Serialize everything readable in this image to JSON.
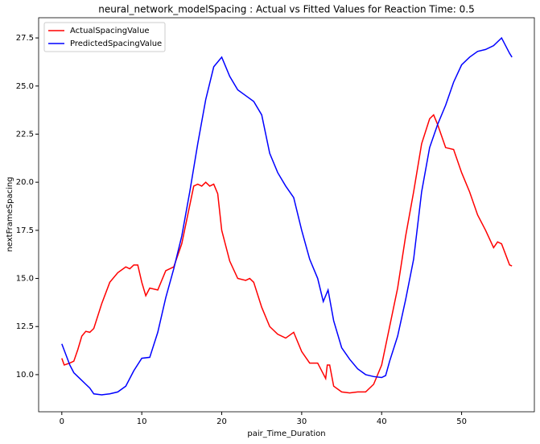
{
  "chart_data": {
    "type": "line",
    "title": "neural_network_modelSpacing : Actual vs Fitted Values for Reaction Time: 0.5",
    "x_label": "pair_Time_Duration",
    "y_label": "nextFrameSpacing",
    "xlim": [
      -2.9,
      59.1
    ],
    "ylim": [
      8.07,
      28.55
    ],
    "xticks": [
      0,
      10,
      20,
      30,
      40,
      50
    ],
    "yticks": [
      {
        "value": 10,
        "label": "10.0"
      },
      12.5,
      {
        "value": 15,
        "label": "15.0"
      },
      17.5,
      {
        "value": 20,
        "label": "20.0"
      },
      22.5,
      {
        "value": 25,
        "label": "25.0"
      },
      27.5
    ],
    "legend": "upper left",
    "series": [
      {
        "name": "ActualSpacingValue",
        "color": "#ff0000",
        "x": [
          0,
          0.3,
          1,
          1.5,
          2,
          2.5,
          3,
          3.5,
          4,
          5,
          6,
          7,
          8,
          8.5,
          9,
          9.5,
          10,
          10.5,
          11,
          12,
          13,
          14,
          15,
          16,
          16.5,
          17,
          17.5,
          18,
          18.5,
          19,
          19.5,
          20,
          21,
          22,
          23,
          23.5,
          24,
          25,
          26,
          27,
          28,
          29,
          30,
          31,
          32,
          33,
          33.2,
          33.5,
          34,
          35,
          36,
          37,
          38,
          39,
          40,
          41,
          42,
          43,
          44,
          45,
          46,
          46.5,
          47,
          48,
          49,
          50,
          51,
          52,
          53,
          54,
          54.5,
          55,
          56,
          56.3
        ],
        "values": [
          10.85,
          10.5,
          10.6,
          10.7,
          11.3,
          12.0,
          12.25,
          12.2,
          12.4,
          13.7,
          14.8,
          15.3,
          15.6,
          15.5,
          15.7,
          15.7,
          14.8,
          14.1,
          14.5,
          14.4,
          15.4,
          15.6,
          16.8,
          18.8,
          19.8,
          19.9,
          19.8,
          20.0,
          19.8,
          19.9,
          19.4,
          17.5,
          15.9,
          15.0,
          14.9,
          15.0,
          14.8,
          13.5,
          12.5,
          12.1,
          11.9,
          12.2,
          11.2,
          10.6,
          10.6,
          9.8,
          10.5,
          10.5,
          9.4,
          9.1,
          9.05,
          9.1,
          9.1,
          9.5,
          10.5,
          12.5,
          14.5,
          17.2,
          19.5,
          22.0,
          23.3,
          23.5,
          23.0,
          21.8,
          21.7,
          20.5,
          19.5,
          18.3,
          17.5,
          16.6,
          16.9,
          16.8,
          15.7,
          15.65
        ]
      },
      {
        "name": "PredictedSpacingValue",
        "color": "#0000ff",
        "x": [
          0,
          1,
          1.5,
          2,
          3,
          3.5,
          4,
          5,
          6,
          7,
          8,
          9,
          10,
          11,
          12,
          13,
          14,
          15,
          16,
          17,
          18,
          19,
          20,
          21,
          22,
          23,
          24,
          25,
          26,
          27,
          28,
          29,
          30,
          31,
          32,
          32.7,
          33.3,
          34,
          35,
          36,
          37,
          38,
          39,
          40,
          40.5,
          41,
          42,
          43,
          44,
          45,
          46,
          47,
          48,
          49,
          50,
          51,
          52,
          53,
          54,
          55,
          56,
          56.3
        ],
        "values": [
          11.6,
          10.5,
          10.1,
          9.9,
          9.5,
          9.3,
          9.0,
          8.95,
          9.0,
          9.1,
          9.4,
          10.2,
          10.85,
          10.9,
          12.2,
          14.0,
          15.5,
          17.2,
          19.5,
          22.0,
          24.3,
          26.0,
          26.5,
          25.5,
          24.8,
          24.5,
          24.2,
          23.5,
          21.5,
          20.5,
          19.8,
          19.2,
          17.5,
          16.0,
          15.0,
          13.8,
          14.4,
          12.8,
          11.4,
          10.8,
          10.3,
          10.0,
          9.9,
          9.85,
          9.95,
          10.7,
          12.0,
          13.9,
          16.0,
          19.5,
          21.8,
          23.0,
          24.0,
          25.2,
          26.1,
          26.5,
          26.8,
          26.9,
          27.1,
          27.5,
          26.7,
          26.5
        ]
      }
    ]
  }
}
